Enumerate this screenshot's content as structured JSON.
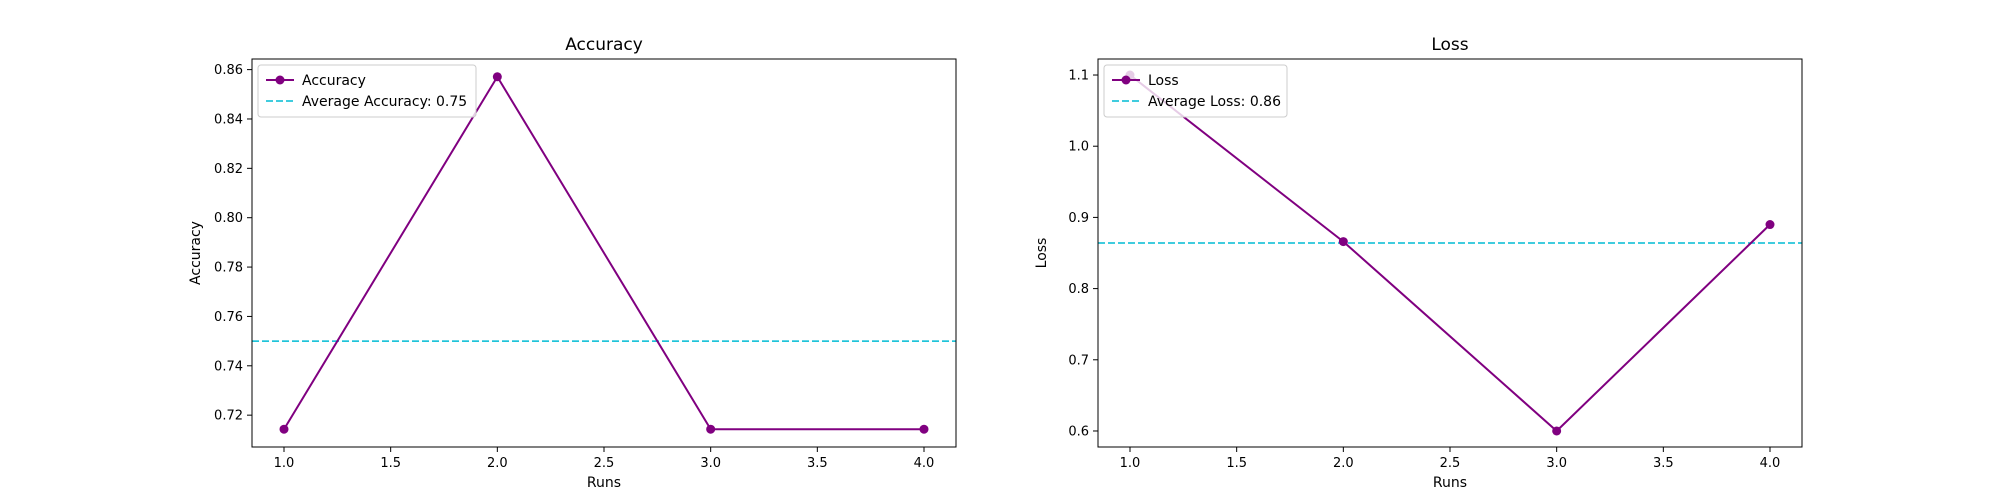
{
  "chart_data": [
    {
      "type": "line",
      "title": "Accuracy",
      "xlabel": "Runs",
      "ylabel": "Accuracy",
      "x": [
        1,
        2,
        3,
        4
      ],
      "xlim": [
        0.85,
        4.15
      ],
      "ylim": [
        0.7071,
        0.8643
      ],
      "xticks": [
        1.0,
        1.5,
        2.0,
        2.5,
        3.0,
        3.5,
        4.0
      ],
      "xtick_labels": [
        "1.0",
        "1.5",
        "2.0",
        "2.5",
        "3.0",
        "3.5",
        "4.0"
      ],
      "yticks": [
        0.72,
        0.74,
        0.76,
        0.78,
        0.8,
        0.82,
        0.84,
        0.86
      ],
      "ytick_labels": [
        "0.72",
        "0.74",
        "0.76",
        "0.78",
        "0.80",
        "0.82",
        "0.84",
        "0.86"
      ],
      "series": [
        {
          "name": "Accuracy",
          "values": [
            0.7143,
            0.8571,
            0.7143,
            0.7143
          ],
          "color": "#800080"
        }
      ],
      "reference_lines": [
        {
          "name": "Average Accuracy: 0.75",
          "value": 0.75,
          "color": "#00bcd4",
          "style": "dashed"
        }
      ],
      "grid": false,
      "legend": "top-left"
    },
    {
      "type": "line",
      "title": "Loss",
      "xlabel": "Runs",
      "ylabel": "Loss",
      "x": [
        1,
        2,
        3,
        4
      ],
      "xlim": [
        0.85,
        4.15
      ],
      "ylim": [
        0.5775,
        1.1225
      ],
      "xticks": [
        1.0,
        1.5,
        2.0,
        2.5,
        3.0,
        3.5,
        4.0
      ],
      "xtick_labels": [
        "1.0",
        "1.5",
        "2.0",
        "2.5",
        "3.0",
        "3.5",
        "4.0"
      ],
      "yticks": [
        0.6,
        0.7,
        0.8,
        0.9,
        1.0,
        1.1
      ],
      "ytick_labels": [
        "0.6",
        "0.7",
        "0.8",
        "0.9",
        "1.0",
        "1.1"
      ],
      "series": [
        {
          "name": "Loss",
          "values": [
            1.1,
            0.866,
            0.6,
            0.89
          ],
          "color": "#800080"
        }
      ],
      "reference_lines": [
        {
          "name": "Average Loss: 0.86",
          "value": 0.864,
          "color": "#00bcd4",
          "style": "dashed"
        }
      ],
      "grid": false,
      "legend": "top-left"
    }
  ]
}
